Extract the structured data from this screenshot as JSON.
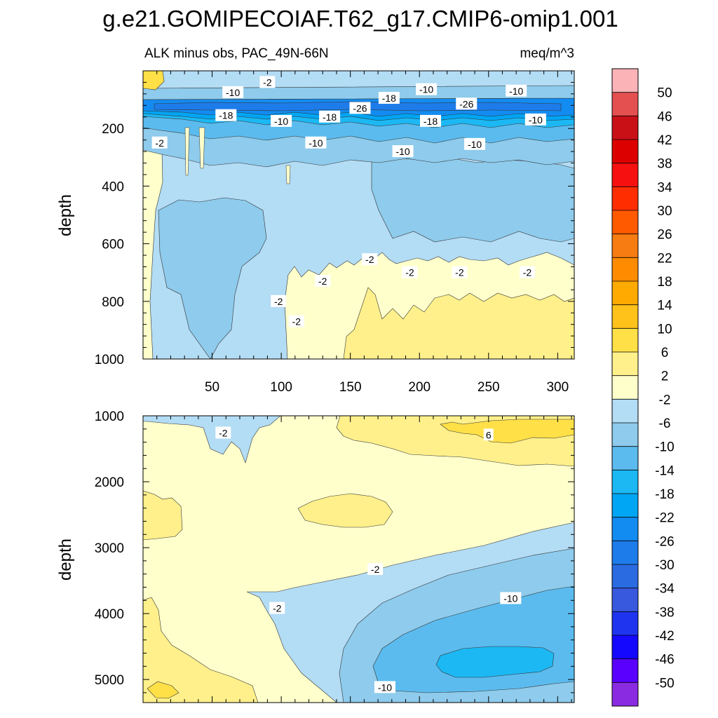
{
  "title": "g.e21.GOMIPECOIAF.T62_g17.CMIP6-omip1.001",
  "chart_data": {
    "type": "heatmap",
    "top_panel": {
      "left_title": "ALK minus obs, PAC_49N-66N",
      "right_title": "meq/m^3",
      "ylabel": "depth",
      "xlabel": "",
      "x_ticks": [
        "50",
        "100",
        "150",
        "200",
        "250",
        "300"
      ],
      "x_tick_values": [
        50,
        100,
        150,
        200,
        250,
        300
      ],
      "xlim": [
        0,
        312
      ],
      "y_ticks": [
        "200",
        "400",
        "600",
        "800",
        "1000"
      ],
      "y_tick_values": [
        200,
        400,
        600,
        800,
        1000
      ],
      "ylim": [
        0,
        1000
      ],
      "y_inverted": true,
      "contour_labels": [
        {
          "text": "-2",
          "x": 90,
          "y": 40
        },
        {
          "text": "-10",
          "x": 65,
          "y": 75
        },
        {
          "text": "-18",
          "x": 178,
          "y": 95
        },
        {
          "text": "-10",
          "x": 205,
          "y": 65
        },
        {
          "text": "-10",
          "x": 270,
          "y": 70
        },
        {
          "text": "-26",
          "x": 157,
          "y": 130
        },
        {
          "text": "-26",
          "x": 234,
          "y": 115
        },
        {
          "text": "-18",
          "x": 60,
          "y": 155
        },
        {
          "text": "-10",
          "x": 100,
          "y": 175
        },
        {
          "text": "-18",
          "x": 135,
          "y": 160
        },
        {
          "text": "-18",
          "x": 208,
          "y": 175
        },
        {
          "text": "-10",
          "x": 284,
          "y": 170
        },
        {
          "text": "-2",
          "x": 12,
          "y": 250
        },
        {
          "text": "-10",
          "x": 125,
          "y": 250
        },
        {
          "text": "-10",
          "x": 188,
          "y": 280
        },
        {
          "text": "-10",
          "x": 240,
          "y": 255
        },
        {
          "text": "-2",
          "x": 164,
          "y": 655
        },
        {
          "text": "-2",
          "x": 193,
          "y": 700
        },
        {
          "text": "-2",
          "x": 229,
          "y": 700
        },
        {
          "text": "-2",
          "x": 278,
          "y": 700
        },
        {
          "text": "-2",
          "x": 130,
          "y": 730
        },
        {
          "text": "-2",
          "x": 98,
          "y": 800
        },
        {
          "text": "-2",
          "x": 111,
          "y": 870
        }
      ]
    },
    "bottom_panel": {
      "ylabel": "depth",
      "xlabel": "",
      "y_ticks": [
        "1000",
        "2000",
        "3000",
        "4000",
        "5000"
      ],
      "y_tick_values": [
        1000,
        2000,
        3000,
        4000,
        5000
      ],
      "ylim": [
        1000,
        5350
      ],
      "y_inverted": true,
      "xlim": [
        0,
        312
      ],
      "contour_labels": [
        {
          "text": "-2",
          "x": 58,
          "y": 1260
        },
        {
          "text": "6",
          "x": 250,
          "y": 1290
        },
        {
          "text": "-2",
          "x": 168,
          "y": 3330
        },
        {
          "text": "-2",
          "x": 97,
          "y": 3920
        },
        {
          "text": "-10",
          "x": 266,
          "y": 3770
        },
        {
          "text": "-10",
          "x": 175,
          "y": 5120
        }
      ]
    },
    "colorbar": {
      "levels": [
        "50",
        "46",
        "42",
        "38",
        "34",
        "30",
        "26",
        "22",
        "18",
        "14",
        "10",
        "6",
        "2",
        "-2",
        "-6",
        "-10",
        "-14",
        "-18",
        "-22",
        "-26",
        "-30",
        "-34",
        "-38",
        "-42",
        "-46",
        "-50"
      ],
      "colors": [
        "#fbb3b8",
        "#e44f50",
        "#c91017",
        "#dc0000",
        "#f71010",
        "#ff2d00",
        "#ff5a00",
        "#f77c12",
        "#ff8b00",
        "#ffaa00",
        "#ffc21a",
        "#ffe047",
        "#fff08b",
        "#ffffcc",
        "#b3dcf5",
        "#8ecbec",
        "#5bbbee",
        "#1cb8f4",
        "#00a5f3",
        "#138cf1",
        "#1e7cea",
        "#2a6be2",
        "#3858de",
        "#1e34ee",
        "#1508ff",
        "#5900ff",
        "#8a2be2"
      ]
    }
  }
}
